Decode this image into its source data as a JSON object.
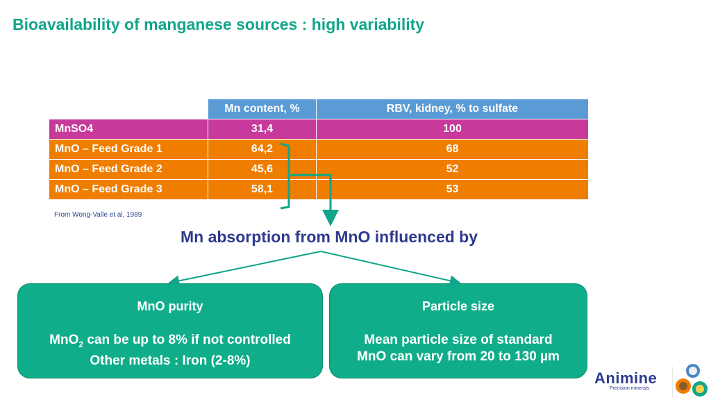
{
  "title": "Bioavailability of manganese sources : high variability",
  "table": {
    "headers": [
      "",
      "Mn content, %",
      "RBV, kidney,  % to sulfate"
    ],
    "rows": [
      {
        "label": "MnSO4",
        "mn_content": "31,4",
        "rbv": "100"
      },
      {
        "label": "MnO – Feed Grade 1",
        "mn_content": "64,2",
        "rbv": "68"
      },
      {
        "label": "MnO – Feed Grade 2",
        "mn_content": "45,6",
        "rbv": "52"
      },
      {
        "label": "MnO – Feed Grade 3",
        "mn_content": "58,1",
        "rbv": "53"
      }
    ]
  },
  "source": "From Wong-Valle et al, 1989",
  "subtitle": "Mn absorption from MnO influenced by",
  "boxes": [
    {
      "title": "MnO purity",
      "line1_pre": "MnO",
      "line1_sub": "2",
      "line1_post": " can be up to 8% if not controlled",
      "line2": "Other metals : Iron (2-8%)"
    },
    {
      "title": "Particle size",
      "line1": "Mean particle size of standard",
      "line2": "MnO can vary from 20 to 130 µm"
    }
  ],
  "logo": {
    "name": "Animine",
    "tagline": "Precision minerals"
  },
  "colors": {
    "title": "#12a58a",
    "header": "#5b9bd5",
    "reference_row": "#c7399b",
    "mno_rows": "#ef7d00",
    "box": "#10ad8a",
    "subtitle": "#2e3a8c"
  }
}
